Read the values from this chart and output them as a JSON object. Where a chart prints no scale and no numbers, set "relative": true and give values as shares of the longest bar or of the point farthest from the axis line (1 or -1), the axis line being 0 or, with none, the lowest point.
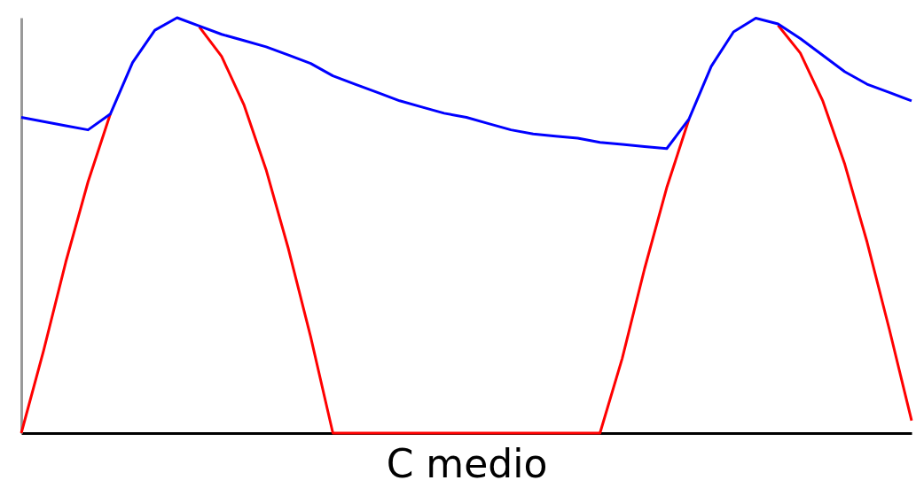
{
  "chart_data": {
    "type": "line",
    "xlabel": "C medio",
    "relative": true,
    "marker": "none",
    "line_style": "solid",
    "categories": [
      null,
      null,
      null,
      null,
      null,
      null,
      null,
      null,
      null,
      null,
      null,
      null,
      null,
      null,
      null,
      null,
      null,
      null,
      null,
      null,
      null,
      null,
      null,
      null,
      null,
      null,
      null,
      null,
      null,
      null,
      null,
      null,
      null,
      null,
      null,
      null,
      null,
      null,
      null,
      null,
      null
    ],
    "series": [
      {
        "color": "#ff0000",
        "values": [
          0,
          0.198,
          0.412,
          0.605,
          0.768,
          null,
          null,
          null,
          0.978,
          0.907,
          0.791,
          0.634,
          0.444,
          0.232,
          0,
          0,
          0,
          0,
          0,
          0,
          0,
          0,
          0,
          0,
          0,
          0,
          0,
          0.18,
          0.395,
          0.591,
          0.756,
          null,
          null,
          null,
          0.982,
          0.915,
          0.801,
          0.647,
          0.46,
          0.25,
          0.03
        ]
      },
      {
        "color": "#0000ff",
        "values": [
          0.76,
          0.75,
          0.74,
          0.73,
          0.768,
          0.892,
          0.97,
          1.0,
          0.98,
          0.96,
          0.945,
          0.93,
          0.91,
          0.89,
          0.86,
          0.84,
          0.82,
          0.8,
          0.785,
          0.77,
          0.76,
          0.745,
          0.73,
          0.72,
          0.715,
          0.71,
          0.7,
          0.695,
          0.69,
          0.685,
          0.756,
          0.883,
          0.966,
          0.999,
          0.985,
          0.95,
          0.91,
          0.87,
          0.84,
          0.82,
          0.8
        ]
      }
    ]
  }
}
